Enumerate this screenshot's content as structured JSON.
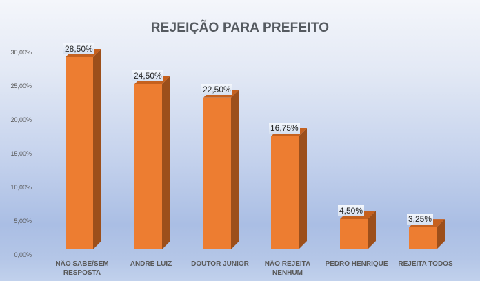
{
  "chart_data": {
    "type": "bar",
    "title": "REJEIÇÃO PARA PREFEITO",
    "xlabel": "",
    "ylabel": "",
    "categories": [
      "NÃO SABE/SEM RESPOSTA",
      "ANDRÉ LUIZ",
      "DOUTOR JUNIOR",
      "NÃO REJEITA NENHUM",
      "PEDRO HENRIQUE",
      "REJEITA TODOS"
    ],
    "values": [
      28.5,
      24.5,
      22.5,
      16.75,
      4.5,
      3.25
    ],
    "value_labels": [
      "28,50%",
      "24,50%",
      "22,50%",
      "16,75%",
      "4,50%",
      "3,25%"
    ],
    "ylim": [
      0,
      30
    ],
    "yticks": [
      "0,00%",
      "5,00%",
      "10,00%",
      "15,00%",
      "20,00%",
      "25,00%",
      "30,00%"
    ],
    "grid": false,
    "legend": null,
    "style": "3d-column",
    "colors": {
      "bar": "#ed7d31",
      "bar_side": "#9c4f1b",
      "text": "#595959",
      "title": "#555a60"
    }
  },
  "x_labels": [
    {
      "line1": "NÃO SABE/SEM",
      "line2": "RESPOSTA"
    },
    {
      "line1": "ANDRÉ LUIZ",
      "line2": ""
    },
    {
      "line1": "DOUTOR JUNIOR",
      "line2": ""
    },
    {
      "line1": "NÃO REJEITA",
      "line2": "NENHUM"
    },
    {
      "line1": "PEDRO HENRIQUE",
      "line2": ""
    },
    {
      "line1": "REJEITA TODOS",
      "line2": ""
    }
  ]
}
